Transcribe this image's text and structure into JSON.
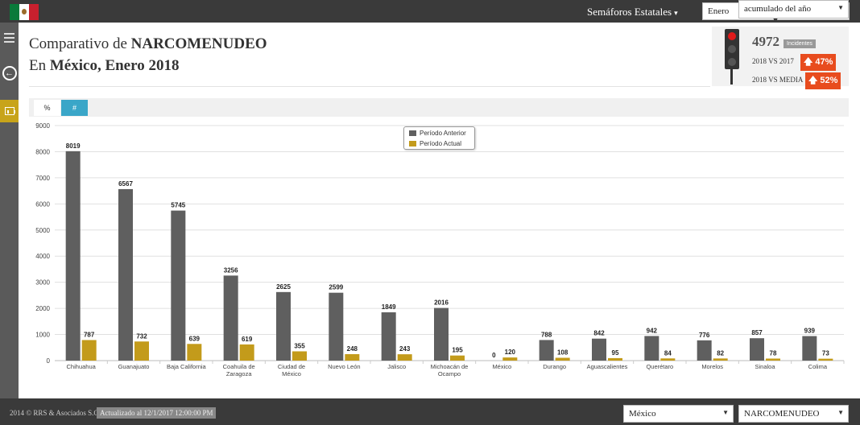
{
  "topbar": {
    "menu_title": "Semáforos Estatales",
    "month_select": "Enero",
    "year_select": "2018"
  },
  "title": {
    "line1_prefix": "Comparativo de ",
    "line1_crime": "NARCOMENUDEO",
    "line2_prefix": "En ",
    "line2_place": "México, Enero 2018"
  },
  "stats": {
    "count": "4972",
    "badge": "Incidentes",
    "compare1_label": "2018 VS 2017",
    "compare1_value": "47%",
    "compare2_label": "2018 VS MEDIA",
    "compare2_value": "52%"
  },
  "toolbar": {
    "pct_label": "%",
    "num_label": "#",
    "range_select": "acumulado del año"
  },
  "colors": {
    "previous": "#5f5f5f",
    "current": "#c39b1b",
    "accent": "#3aa6c8",
    "alert": "#e84c1e"
  },
  "chart_data": {
    "type": "bar",
    "categories": [
      [
        "Chihuahua"
      ],
      [
        "Guanajuato"
      ],
      [
        "Baja California"
      ],
      [
        "Coahuila de",
        "Zaragoza"
      ],
      [
        "Ciudad de",
        "México"
      ],
      [
        "Nuevo León"
      ],
      [
        "Jalisco"
      ],
      [
        "Michoacán de",
        "Ocampo"
      ],
      [
        "México"
      ],
      [
        "Durango"
      ],
      [
        "Aguascalientes"
      ],
      [
        "Querétaro"
      ],
      [
        "Morelos"
      ],
      [
        "Sinaloa"
      ],
      [
        "Colima"
      ]
    ],
    "series": [
      {
        "name": "Período Anterior",
        "values": [
          8019,
          6567,
          5745,
          3256,
          2625,
          2599,
          1849,
          2016,
          0,
          788,
          842,
          942,
          776,
          857,
          939
        ]
      },
      {
        "name": "Período Actual",
        "values": [
          787,
          732,
          639,
          619,
          355,
          248,
          243,
          195,
          120,
          108,
          95,
          84,
          82,
          78,
          73
        ]
      }
    ],
    "yticks": [
      0,
      1000,
      2000,
      3000,
      4000,
      5000,
      6000,
      7000,
      8000,
      9000
    ],
    "ylim": [
      0,
      9000
    ],
    "grid": true,
    "legend": "top-center"
  },
  "footer": {
    "copyright": "2014 © RRS & Asociados S.C.",
    "updated": "Actualizado al 12/1/2017 12:00:00 PM",
    "state_select": "México",
    "crime_select": "NARCOMENUDEO"
  }
}
